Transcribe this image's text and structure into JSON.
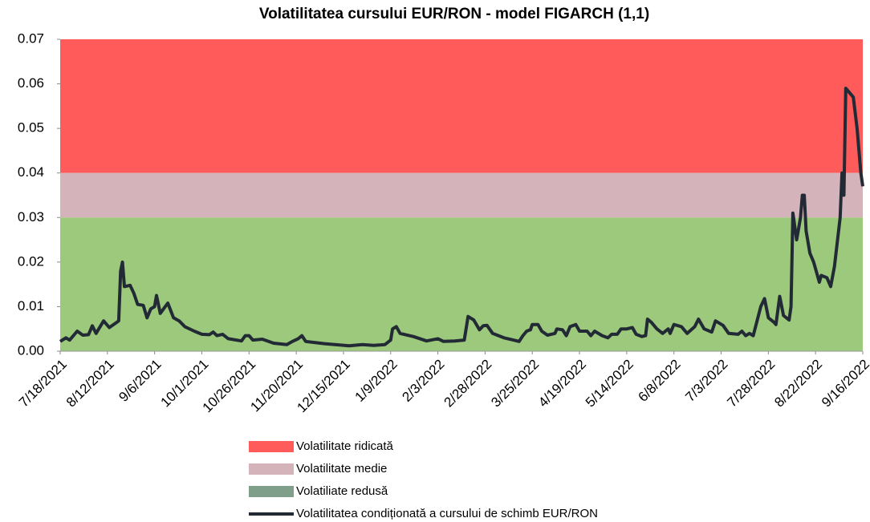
{
  "chart_data": {
    "type": "line",
    "title": "Volatilitatea cursului EUR/RON - model FIGARCH (1,1)",
    "bands": [
      {
        "name": "Volatilitate ridicată",
        "color": "#ff5b5b",
        "range": [
          0.04,
          0.07
        ]
      },
      {
        "name": "Volatilitate medie",
        "color": "#d5b3bb",
        "range": [
          0.03,
          0.04
        ]
      },
      {
        "name": "Volatiliate redusă",
        "color": "#9dc97c",
        "legend_color": "#7f9f8a",
        "range": [
          0,
          0.03
        ]
      }
    ],
    "x": [
      "7/18/2021",
      "7/21/2021",
      "7/23/2021",
      "7/27/2021",
      "7/30/2021",
      "8/2/2021",
      "8/4/2021",
      "8/6/2021",
      "8/10/2021",
      "8/13/2021",
      "8/17/2021",
      "8/18/2021",
      "8/19/2021",
      "8/20/2021",
      "8/21/2021",
      "8/24/2021",
      "8/26/2021",
      "8/28/2021",
      "8/31/2021",
      "9/2/2021",
      "9/4/2021",
      "9/6/2021",
      "9/7/2021",
      "9/9/2021",
      "9/13/2021",
      "9/16/2021",
      "9/19/2021",
      "9/22/2021",
      "9/27/2021",
      "10/1/2021",
      "10/5/2021",
      "10/7/2021",
      "10/9/2021",
      "10/12/2021",
      "10/15/2021",
      "10/22/2021",
      "10/24/2021",
      "10/26/2021",
      "10/28/2021",
      "11/2/2021",
      "11/8/2021",
      "11/15/2021",
      "11/18/2021",
      "11/21/2021",
      "11/23/2021",
      "11/25/2021",
      "12/5/2021",
      "12/18/2021",
      "12/25/2021",
      "12/31/2021",
      "1/6/2022",
      "1/9/2022",
      "1/10/2022",
      "1/12/2022",
      "1/14/2022",
      "1/21/2022",
      "1/28/2022",
      "2/3/2022",
      "2/6/2022",
      "2/12/2022",
      "2/17/2022",
      "2/19/2022",
      "2/22/2022",
      "2/25/2022",
      "2/27/2022",
      "3/1/2022",
      "3/4/2022",
      "3/10/2022",
      "3/18/2022",
      "3/20/2022",
      "3/22/2022",
      "3/24/2022",
      "3/25/2022",
      "3/28/2022",
      "3/30/2022",
      "4/2/2022",
      "4/6/2022",
      "4/7/2022",
      "4/10/2022",
      "4/12/2022",
      "4/14/2022",
      "4/17/2022",
      "4/19/2022",
      "4/23/2022",
      "4/25/2022",
      "4/27/2022",
      "5/1/2022",
      "5/4/2022",
      "5/6/2022",
      "5/9/2022",
      "5/11/2022",
      "5/14/2022",
      "5/17/2022",
      "5/19/2022",
      "5/22/2022",
      "5/24/2022",
      "5/25/2022",
      "5/27/2022",
      "5/30/2022",
      "6/2/2022",
      "6/5/2022",
      "6/6/2022",
      "6/8/2022",
      "6/12/2022",
      "6/15/2022",
      "6/19/2022",
      "6/21/2022",
      "6/24/2022",
      "6/28/2022",
      "6/30/2022",
      "7/4/2022",
      "7/7/2022",
      "7/12/2022",
      "7/14/2022",
      "7/16/2022",
      "7/18/2022",
      "7/20/2022",
      "7/24/2022",
      "7/26/2022",
      "7/28/2022",
      "7/31/2022",
      "8/1/2022",
      "8/3/2022",
      "8/5/2022",
      "8/8/2022",
      "8/9/2022",
      "8/10/2022",
      "8/12/2022",
      "8/14/2022",
      "8/15/2022",
      "8/16/2022",
      "8/17/2022",
      "8/19/2022",
      "8/21/2022",
      "8/24/2022",
      "8/25/2022",
      "8/28/2022",
      "8/30/2022",
      "9/1/2022",
      "9/4/2022",
      "9/5/2022",
      "9/6/2022",
      "9/7/2022",
      "9/11/2022",
      "9/13/2022",
      "9/15/2022",
      "9/16/2022"
    ],
    "series": [
      {
        "name": "Volatilitatea condiționată a cursului de schimb EUR/RON",
        "color": "#222a35",
        "values": [
          0.0022,
          0.003,
          0.0025,
          0.0045,
          0.0036,
          0.0037,
          0.0057,
          0.004,
          0.0068,
          0.0053,
          0.0065,
          0.0068,
          0.018,
          0.02,
          0.0145,
          0.0148,
          0.013,
          0.0105,
          0.0103,
          0.0075,
          0.0095,
          0.01,
          0.0125,
          0.0085,
          0.0108,
          0.0075,
          0.0068,
          0.0055,
          0.0045,
          0.0038,
          0.0037,
          0.0043,
          0.0035,
          0.0038,
          0.0028,
          0.0023,
          0.0035,
          0.0035,
          0.0025,
          0.0027,
          0.0018,
          0.0015,
          0.0022,
          0.0028,
          0.0035,
          0.0022,
          0.0017,
          0.0012,
          0.0015,
          0.0013,
          0.0015,
          0.0025,
          0.005,
          0.0055,
          0.004,
          0.0033,
          0.0023,
          0.0028,
          0.0022,
          0.0023,
          0.0025,
          0.0078,
          0.007,
          0.0048,
          0.0057,
          0.0058,
          0.004,
          0.003,
          0.0022,
          0.0035,
          0.0045,
          0.0048,
          0.006,
          0.006,
          0.0045,
          0.0036,
          0.004,
          0.005,
          0.0048,
          0.0035,
          0.0055,
          0.006,
          0.0045,
          0.0045,
          0.0035,
          0.0045,
          0.0035,
          0.003,
          0.0038,
          0.0038,
          0.005,
          0.005,
          0.0053,
          0.0038,
          0.0033,
          0.0035,
          0.0072,
          0.0065,
          0.005,
          0.004,
          0.005,
          0.004,
          0.006,
          0.0055,
          0.004,
          0.0055,
          0.0072,
          0.005,
          0.0043,
          0.0068,
          0.0058,
          0.004,
          0.0038,
          0.0045,
          0.0035,
          0.004,
          0.0035,
          0.01,
          0.0118,
          0.0075,
          0.0065,
          0.006,
          0.0123,
          0.008,
          0.007,
          0.01,
          0.031,
          0.025,
          0.03,
          0.035,
          0.035,
          0.027,
          0.022,
          0.02,
          0.0155,
          0.017,
          0.0165,
          0.0145,
          0.019,
          0.03,
          0.04,
          0.035,
          0.059,
          0.057,
          0.05,
          0.04,
          0.037
        ]
      }
    ],
    "xlim": [
      "7/18/2021",
      "9/16/2022"
    ],
    "xticks": [
      "7/18/2021",
      "8/12/2021",
      "9/6/2021",
      "10/1/2021",
      "10/26/2021",
      "11/20/2021",
      "12/15/2021",
      "1/9/2022",
      "2/3/2022",
      "2/28/2022",
      "3/25/2022",
      "4/19/2022",
      "5/14/2022",
      "6/8/2022",
      "7/3/2022",
      "7/28/2022",
      "8/22/2022",
      "9/16/2022"
    ],
    "ylim": [
      0,
      0.07
    ],
    "yticks": [
      {
        "value": 0,
        "label": "0.00"
      },
      0.01,
      0.02,
      0.03,
      0.04,
      0.05,
      0.06,
      0.07
    ]
  }
}
